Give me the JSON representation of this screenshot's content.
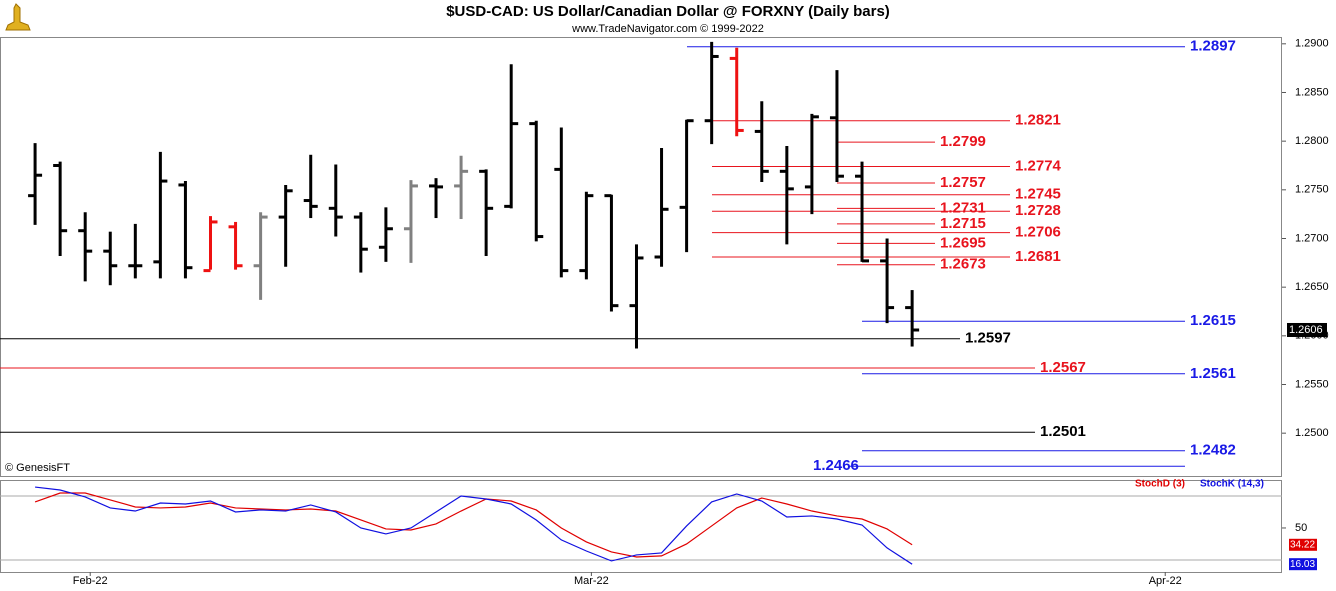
{
  "chart_data": [
    {
      "type": "ohlc",
      "title": "$USD-CAD:  US Dollar/Canadian Dollar @ FORXNY  (Daily bars)",
      "subtitle": "www.TradeNavigator.com © 1999-2022",
      "annotation": "© GenesisFT",
      "x": [
        0,
        1,
        2,
        3,
        4,
        5,
        6,
        7,
        8,
        9,
        10,
        11,
        12,
        13,
        14,
        15,
        16,
        17,
        18,
        19,
        20,
        21,
        22,
        23,
        24,
        25,
        26,
        27,
        28,
        29,
        30,
        31,
        32,
        33,
        34,
        35
      ],
      "open": [
        1.2744,
        1.2775,
        1.2708,
        1.2687,
        1.2672,
        1.2676,
        1.2755,
        1.2667,
        1.2712,
        1.2672,
        1.2722,
        1.2739,
        1.2731,
        1.2722,
        1.2691,
        1.271,
        1.2754,
        1.2754,
        1.2769,
        1.2733,
        1.2818,
        1.2771,
        1.2667,
        1.2744,
        1.2631,
        1.2681,
        1.2732,
        1.2821,
        1.2885,
        1.281,
        1.2769,
        1.2753,
        1.2824,
        1.2764,
        1.2677,
        1.2629
      ],
      "high": [
        1.2798,
        1.2779,
        1.2727,
        1.2707,
        1.2715,
        1.2789,
        1.2759,
        1.2723,
        1.2717,
        1.2727,
        1.2755,
        1.2786,
        1.2776,
        1.2727,
        1.2732,
        1.276,
        1.2762,
        1.2785,
        1.2771,
        1.2879,
        1.2821,
        1.2814,
        1.2748,
        1.2745,
        1.2694,
        1.2793,
        1.2822,
        1.2902,
        1.2896,
        1.2841,
        1.2795,
        1.2828,
        1.2873,
        1.2779,
        1.27,
        1.2647
      ],
      "low": [
        1.2714,
        1.2682,
        1.2656,
        1.2652,
        1.2659,
        1.2659,
        1.2659,
        1.2668,
        1.2668,
        1.2637,
        1.2671,
        1.2721,
        1.2702,
        1.2665,
        1.2676,
        1.2675,
        1.2721,
        1.272,
        1.2682,
        1.2731,
        1.2697,
        1.266,
        1.2658,
        1.2625,
        1.2587,
        1.2671,
        1.2686,
        1.2797,
        1.2805,
        1.2758,
        1.2694,
        1.2725,
        1.2758,
        1.2676,
        1.2613,
        1.2589
      ],
      "close": [
        1.2765,
        1.2708,
        1.2687,
        1.2672,
        1.2672,
        1.2759,
        1.267,
        1.2717,
        1.2672,
        1.2722,
        1.2749,
        1.2733,
        1.2722,
        1.2689,
        1.271,
        1.2754,
        1.2753,
        1.2769,
        1.2731,
        1.2818,
        1.2702,
        1.2667,
        1.2744,
        1.2631,
        1.268,
        1.273,
        1.2821,
        1.2887,
        1.2811,
        1.2769,
        1.2751,
        1.2825,
        1.2764,
        1.2677,
        1.2629,
        1.2606
      ],
      "colors": [
        "#000000",
        "#000000",
        "#000000",
        "#000000",
        "#000000",
        "#000000",
        "#000000",
        "#ee1111",
        "#ee1111",
        "#808080",
        "#000000",
        "#000000",
        "#000000",
        "#000000",
        "#000000",
        "#808080",
        "#000000",
        "#808080",
        "#000000",
        "#000000",
        "#000000",
        "#000000",
        "#000000",
        "#000000",
        "#000000",
        "#000000",
        "#000000",
        "#000000",
        "#ee1111",
        "#000000",
        "#000000",
        "#000000",
        "#000000",
        "#000000",
        "#000000",
        "#000000"
      ],
      "levels": [
        {
          "value": 1.2897,
          "color": "#1a1ae6"
        },
        {
          "value": 1.2821,
          "color": "#e8141e"
        },
        {
          "value": 1.2799,
          "color": "#e8141e"
        },
        {
          "value": 1.2774,
          "color": "#e8141e"
        },
        {
          "value": 1.2757,
          "color": "#e8141e"
        },
        {
          "value": 1.2745,
          "color": "#e8141e"
        },
        {
          "value": 1.2731,
          "color": "#e8141e"
        },
        {
          "value": 1.2728,
          "color": "#e8141e"
        },
        {
          "value": 1.2715,
          "color": "#e8141e"
        },
        {
          "value": 1.2706,
          "color": "#e8141e"
        },
        {
          "value": 1.2695,
          "color": "#e8141e"
        },
        {
          "value": 1.2681,
          "color": "#e8141e"
        },
        {
          "value": 1.2673,
          "color": "#e8141e"
        },
        {
          "value": 1.2615,
          "color": "#1a1ae6"
        },
        {
          "value": 1.2597,
          "color": "#000000"
        },
        {
          "value": 1.2567,
          "color": "#e8141e"
        },
        {
          "value": 1.2561,
          "color": "#1a1ae6"
        },
        {
          "value": 1.2501,
          "color": "#000000"
        },
        {
          "value": 1.2482,
          "color": "#1a1ae6"
        },
        {
          "value": 1.2466,
          "color": "#1a1ae6"
        }
      ],
      "xlim": [
        -1.4,
        49.76
      ],
      "xticks": [
        {
          "value": 2.2,
          "label": "Feb-22"
        },
        {
          "value": 22.2,
          "label": "Mar-22"
        },
        {
          "value": 45.1,
          "label": "Apr-22"
        }
      ],
      "ylim": [
        1.2456,
        1.2907
      ],
      "yticks": [
        {
          "value": 1.25,
          "label": "1.2500"
        },
        {
          "value": 1.255,
          "label": "1.2550"
        },
        {
          "value": 1.26,
          "label": "1.2600"
        },
        {
          "value": 1.265,
          "label": "1.2650"
        },
        {
          "value": 1.27,
          "label": "1.2700"
        },
        {
          "value": 1.275,
          "label": "1.2750"
        },
        {
          "value": 1.28,
          "label": "1.2800"
        },
        {
          "value": 1.285,
          "label": "1.2850"
        },
        {
          "value": 1.29,
          "label": "1.2900"
        }
      ]
    },
    {
      "type": "line",
      "x": [
        0,
        1,
        2,
        3,
        4,
        5,
        6,
        7,
        8,
        9,
        10,
        11,
        12,
        13,
        14,
        15,
        16,
        17,
        18,
        19,
        20,
        21,
        22,
        23,
        24,
        25,
        26,
        27,
        28,
        29,
        30,
        31,
        32,
        33,
        34,
        35
      ],
      "series": [
        {
          "name": "StochD (3)",
          "color": "#e00000",
          "values": [
            74.4,
            82.8,
            82.8,
            76.3,
            69.7,
            68.8,
            69.7,
            73.4,
            68.8,
            67.8,
            66.9,
            67.8,
            65.9,
            57.5,
            49.1,
            48.1,
            53.8,
            65.9,
            77.2,
            75.3,
            66.9,
            50,
            36.9,
            27.5,
            22.8,
            23.8,
            35,
            51.9,
            68.8,
            78.1,
            72.5,
            65.9,
            61.3,
            58.4,
            49.1,
            34.22
          ]
        },
        {
          "name": "StochK (14,3)",
          "color": "#1010e0",
          "values": [
            88.4,
            85.6,
            79.1,
            68.8,
            65.9,
            73.4,
            72.5,
            75.3,
            65,
            66.9,
            65.9,
            71.6,
            65,
            50,
            44.4,
            50,
            65,
            80,
            77.2,
            72.5,
            57.5,
            38.8,
            28.4,
            19.1,
            24.7,
            26.6,
            51.9,
            74.4,
            81.9,
            75.3,
            60.3,
            61.3,
            58.4,
            52.8,
            31.3,
            16.03
          ]
        }
      ],
      "xlim": [
        -1.4,
        49.76
      ],
      "ylim": [
        8.7,
        95
      ],
      "yticks": [
        50
      ],
      "levels": [
        80,
        20
      ]
    }
  ]
}
